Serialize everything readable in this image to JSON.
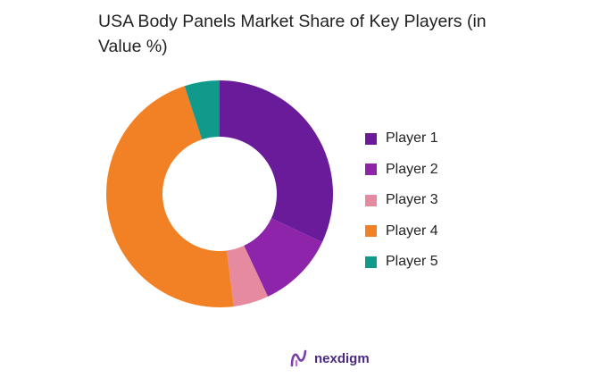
{
  "chart_data": {
    "type": "pie",
    "title": "USA Body Panels Market Share of Key Players (in Value %)",
    "categories": [
      "Player 1",
      "Player 2",
      "Player 3",
      "Player 4",
      "Player 5"
    ],
    "values": [
      32,
      11,
      5,
      47,
      5
    ],
    "colors": [
      "#6a1b9a",
      "#8e24aa",
      "#e68aa0",
      "#f28125",
      "#109a8c"
    ],
    "legend_position": "right",
    "donut": true
  },
  "brand": {
    "name": "nexdigm",
    "color": "#4b2a7d",
    "icon": "nexdigm-logo"
  }
}
